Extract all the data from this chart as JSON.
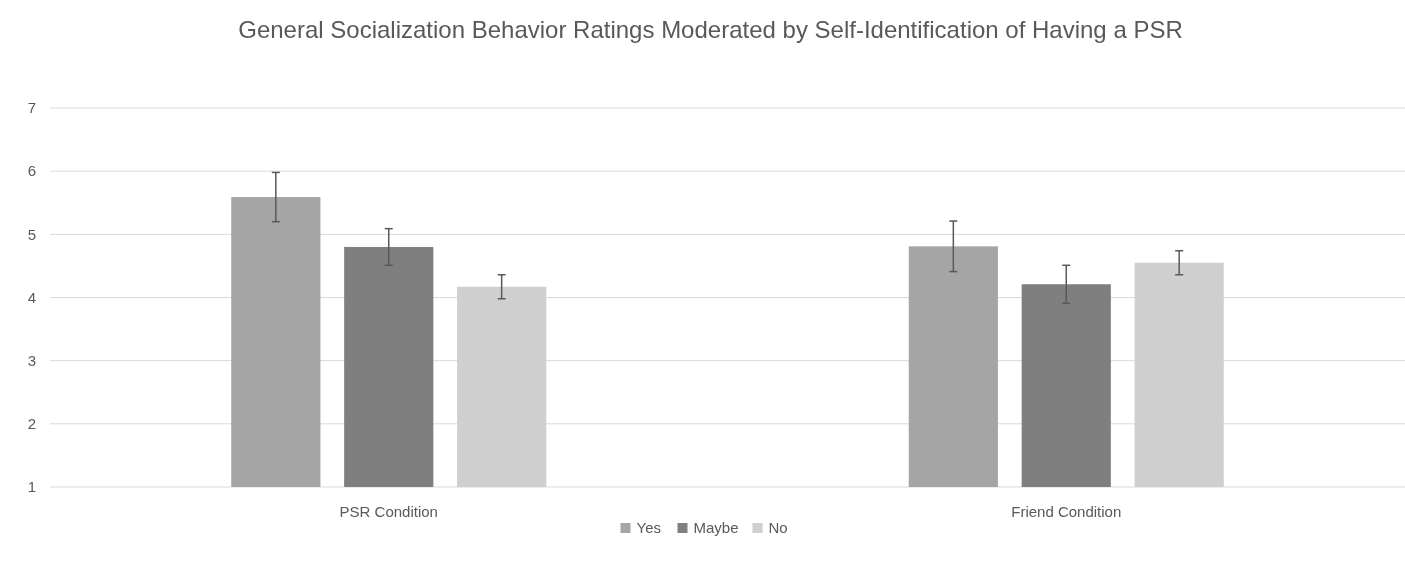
{
  "chart_data": {
    "type": "bar",
    "title": "General Socialization Behavior Ratings Moderated by Self-Identification of Having a PSR",
    "categories": [
      "PSR Condition",
      "Friend Condition"
    ],
    "series": [
      {
        "name": "Yes",
        "color": "#a5a5a5",
        "values": [
          5.59,
          4.81
        ],
        "errors": [
          0.39,
          0.4
        ]
      },
      {
        "name": "Maybe",
        "color": "#7f7f7f",
        "values": [
          4.8,
          4.21
        ],
        "errors": [
          0.29,
          0.3
        ]
      },
      {
        "name": "No",
        "color": "#d0cfd0",
        "values": [
          4.17,
          4.55
        ],
        "errors": [
          0.19,
          0.19
        ]
      }
    ],
    "ylim": [
      1,
      7
    ],
    "yticks": [
      1,
      2,
      3,
      4,
      5,
      6,
      7
    ],
    "grid": "y",
    "legend": "bottom"
  }
}
